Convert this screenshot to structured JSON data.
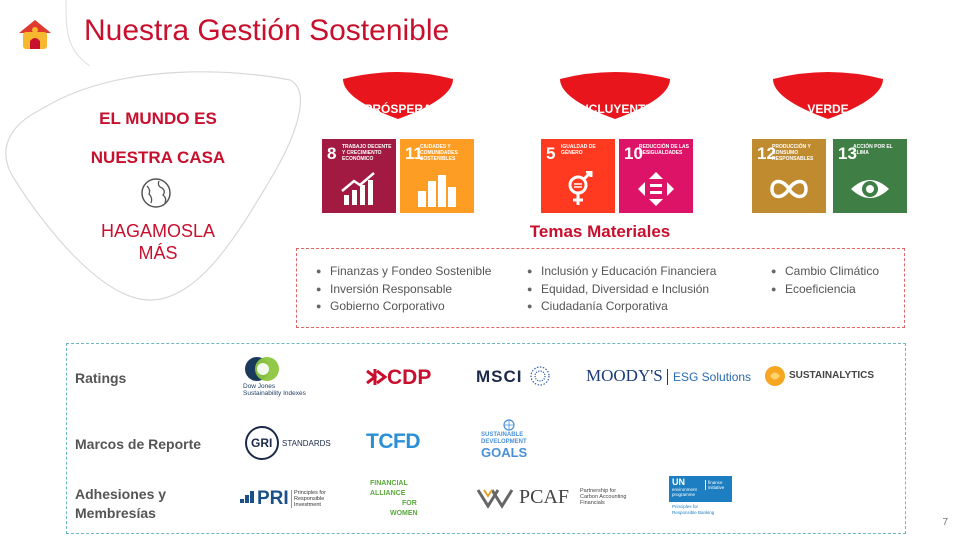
{
  "header": {
    "title": "Nuestra Gestión Sostenible"
  },
  "hero": {
    "line1": "EL MUNDO ES",
    "line2": "NUESTRA CASA",
    "tagline1": "HAGAMOSLA",
    "tagline2": "MÁS",
    "accent": "#c8102e"
  },
  "pillars": [
    {
      "label": "PRÓSPERA"
    },
    {
      "label": "INCLUYENTE"
    },
    {
      "label": "VERDE"
    }
  ],
  "sdgs": [
    {
      "number": "8",
      "text": "Trabajo decente y crecimiento económico",
      "color": "#a21942",
      "icon": "growth-chart-icon"
    },
    {
      "number": "11",
      "text": "Ciudades y comunidades sostenibles",
      "color": "#fd9d24",
      "icon": "city-buildings-icon"
    },
    {
      "number": "5",
      "text": "Igualdad de género",
      "color": "#ff3a21",
      "icon": "gender-equality-icon"
    },
    {
      "number": "10",
      "text": "Reducción de las desigualdades",
      "color": "#dd1367",
      "icon": "reduced-inequalities-icon"
    },
    {
      "number": "12",
      "text": "Producción y consumo responsables",
      "color": "#bf8b2e",
      "icon": "infinity-icon"
    },
    {
      "number": "13",
      "text": "Acción por el clima",
      "color": "#3f7e44",
      "icon": "climate-eye-icon"
    }
  ],
  "temas": {
    "title": "Temas Materiales",
    "columns": [
      [
        "Finanzas y Fondeo Sostenible",
        "Inversión Responsable",
        "Gobierno Corporativo"
      ],
      [
        "Inclusión y Educación Financiera",
        "Equidad, Diversidad e Inclusión",
        "Ciudadanía Corporativa"
      ],
      [
        "Cambio Climático",
        "Ecoeficiencia"
      ]
    ]
  },
  "rows": {
    "ratings": "Ratings",
    "marcos": "Marcos de Reporte",
    "adhesiones1": "Adhesiones y",
    "adhesiones2": "Membresías"
  },
  "logos": {
    "djsi_line1": "Dow Jones",
    "djsi_line2": "Sustainability Indexes",
    "cdp": "CDP",
    "msci": "MSCI",
    "moodys": "MOODY'S",
    "moodys_esg": "ESG Solutions",
    "sustainalytics": "SUSTAINALYTICS",
    "gri": "GRI",
    "gri_standards": "STANDARDS",
    "tcfd": "TCFD",
    "sdg_line1": "SUSTAINABLE",
    "sdg_line2": "DEVELOPMENT",
    "sdg_line3": "GOALS",
    "pri": "PRI",
    "pri_desc1": "Principles for",
    "pri_desc2": "Responsible",
    "pri_desc3": "Investment",
    "gfa1": "FINANCIAL",
    "gfa2": "ALLIANCE",
    "gfa3": "FOR",
    "gfa4": "WOMEN",
    "pcaf": "PCAF",
    "pcaf_desc1": "Partnership for",
    "pcaf_desc2": "Carbon Accounting",
    "pcaf_desc3": "Financials",
    "unep_un": "UN",
    "unep_env1": "environment",
    "unep_env2": "programme",
    "unep_fi1": "finance",
    "unep_fi2": "initiative",
    "unep_pr1": "Principles for",
    "unep_pr2": "Responsible Banking"
  },
  "page_number": "7"
}
